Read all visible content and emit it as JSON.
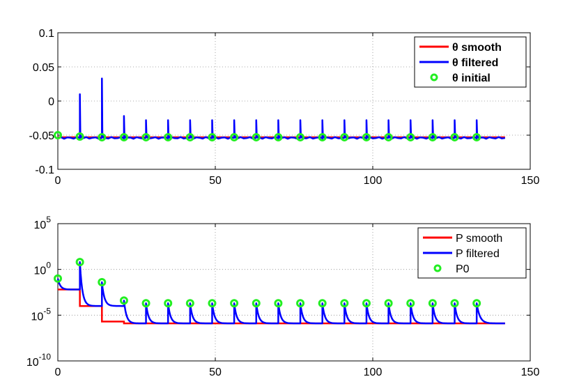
{
  "chart_data": [
    {
      "type": "line",
      "title": "",
      "xlabel": "",
      "ylabel": "",
      "xlim": [
        0,
        150
      ],
      "ylim": [
        -0.1,
        0.1
      ],
      "yscale": "linear",
      "grid": true,
      "legend_position": "top-right",
      "x_ticks": [
        "0",
        "50",
        "100",
        "150"
      ],
      "y_ticks": [
        "-0.1",
        "-0.05",
        "0",
        "0.05",
        "0.1"
      ],
      "series": [
        {
          "name": "θ smooth",
          "color": "#ff0000",
          "style": "line",
          "x": [
            0,
            142
          ],
          "y": [
            -0.053,
            -0.053
          ]
        },
        {
          "name": "θ filtered",
          "color": "#0000ff",
          "style": "line",
          "spike_x": [
            7,
            14,
            21,
            28,
            35,
            42,
            49,
            56,
            63,
            70,
            77,
            84,
            91,
            98,
            105,
            112,
            119,
            126,
            133
          ],
          "spike_peak": [
            0.01,
            0.033,
            -0.022,
            -0.028,
            -0.028,
            -0.028,
            -0.028,
            -0.028,
            -0.028,
            -0.028,
            -0.028,
            -0.028,
            -0.028,
            -0.028,
            -0.028,
            -0.028,
            -0.028,
            -0.028,
            -0.028
          ],
          "baseline": -0.054,
          "x_end": 142
        },
        {
          "name": "θ initial",
          "color": "#22ee22",
          "style": "marker",
          "x": [
            0,
            7,
            14,
            21,
            28,
            35,
            42,
            49,
            56,
            63,
            70,
            77,
            84,
            91,
            98,
            105,
            112,
            119,
            126,
            133
          ],
          "y": [
            -0.05,
            -0.052,
            -0.053,
            -0.053,
            -0.053,
            -0.053,
            -0.053,
            -0.053,
            -0.053,
            -0.053,
            -0.053,
            -0.053,
            -0.053,
            -0.053,
            -0.053,
            -0.053,
            -0.053,
            -0.053,
            -0.053,
            -0.053
          ]
        }
      ]
    },
    {
      "type": "line",
      "title": "",
      "xlabel": "",
      "ylabel": "",
      "xlim": [
        0,
        150
      ],
      "ylim_exp": [
        -10,
        5
      ],
      "yscale": "log",
      "grid": true,
      "legend_position": "top-right",
      "x_ticks": [
        "0",
        "50",
        "100",
        "150"
      ],
      "y_ticks": [
        {
          "base": "10",
          "exp": "5"
        },
        {
          "base": "10",
          "exp": "0"
        },
        {
          "base": "10",
          "exp": "-5"
        },
        {
          "base": "10",
          "exp": "-10"
        }
      ],
      "series": [
        {
          "name": "P smooth",
          "color": "#ff0000",
          "style": "step",
          "x": [
            0,
            7,
            7,
            14,
            14,
            21,
            21,
            142
          ],
          "log10_y": [
            -2.2,
            -2.2,
            -4.0,
            -4.0,
            -5.7,
            -5.7,
            -5.9,
            -5.9
          ]
        },
        {
          "name": "P filtered",
          "color": "#0000ff",
          "style": "decay",
          "start_x": [
            0,
            7,
            14,
            21,
            28,
            35,
            42,
            49,
            56,
            63,
            70,
            77,
            84,
            91,
            98,
            105,
            112,
            119,
            126,
            133
          ],
          "start_log10": [
            -1.0,
            0.8,
            -1.4,
            -3.4,
            -3.7,
            -3.7,
            -3.7,
            -3.7,
            -3.7,
            -3.7,
            -3.7,
            -3.7,
            -3.7,
            -3.7,
            -3.7,
            -3.7,
            -3.7,
            -3.7,
            -3.7,
            -3.7
          ],
          "end_log10": [
            -2.2,
            -4.0,
            -4.0,
            -5.9,
            -5.9,
            -5.9,
            -5.9,
            -5.9,
            -5.9,
            -5.9,
            -5.9,
            -5.9,
            -5.9,
            -5.9,
            -5.9,
            -5.9,
            -5.9,
            -5.9,
            -5.9,
            -5.9
          ],
          "x_end": 142
        },
        {
          "name": "P0",
          "color": "#22ee22",
          "style": "marker",
          "x": [
            0,
            7,
            14,
            21,
            28,
            35,
            42,
            49,
            56,
            63,
            70,
            77,
            84,
            91,
            98,
            105,
            112,
            119,
            126,
            133
          ],
          "log10_y": [
            -1.0,
            0.8,
            -1.4,
            -3.4,
            -3.7,
            -3.7,
            -3.7,
            -3.7,
            -3.7,
            -3.7,
            -3.7,
            -3.7,
            -3.7,
            -3.7,
            -3.7,
            -3.7,
            -3.7,
            -3.7,
            -3.7,
            -3.7
          ]
        }
      ]
    }
  ]
}
